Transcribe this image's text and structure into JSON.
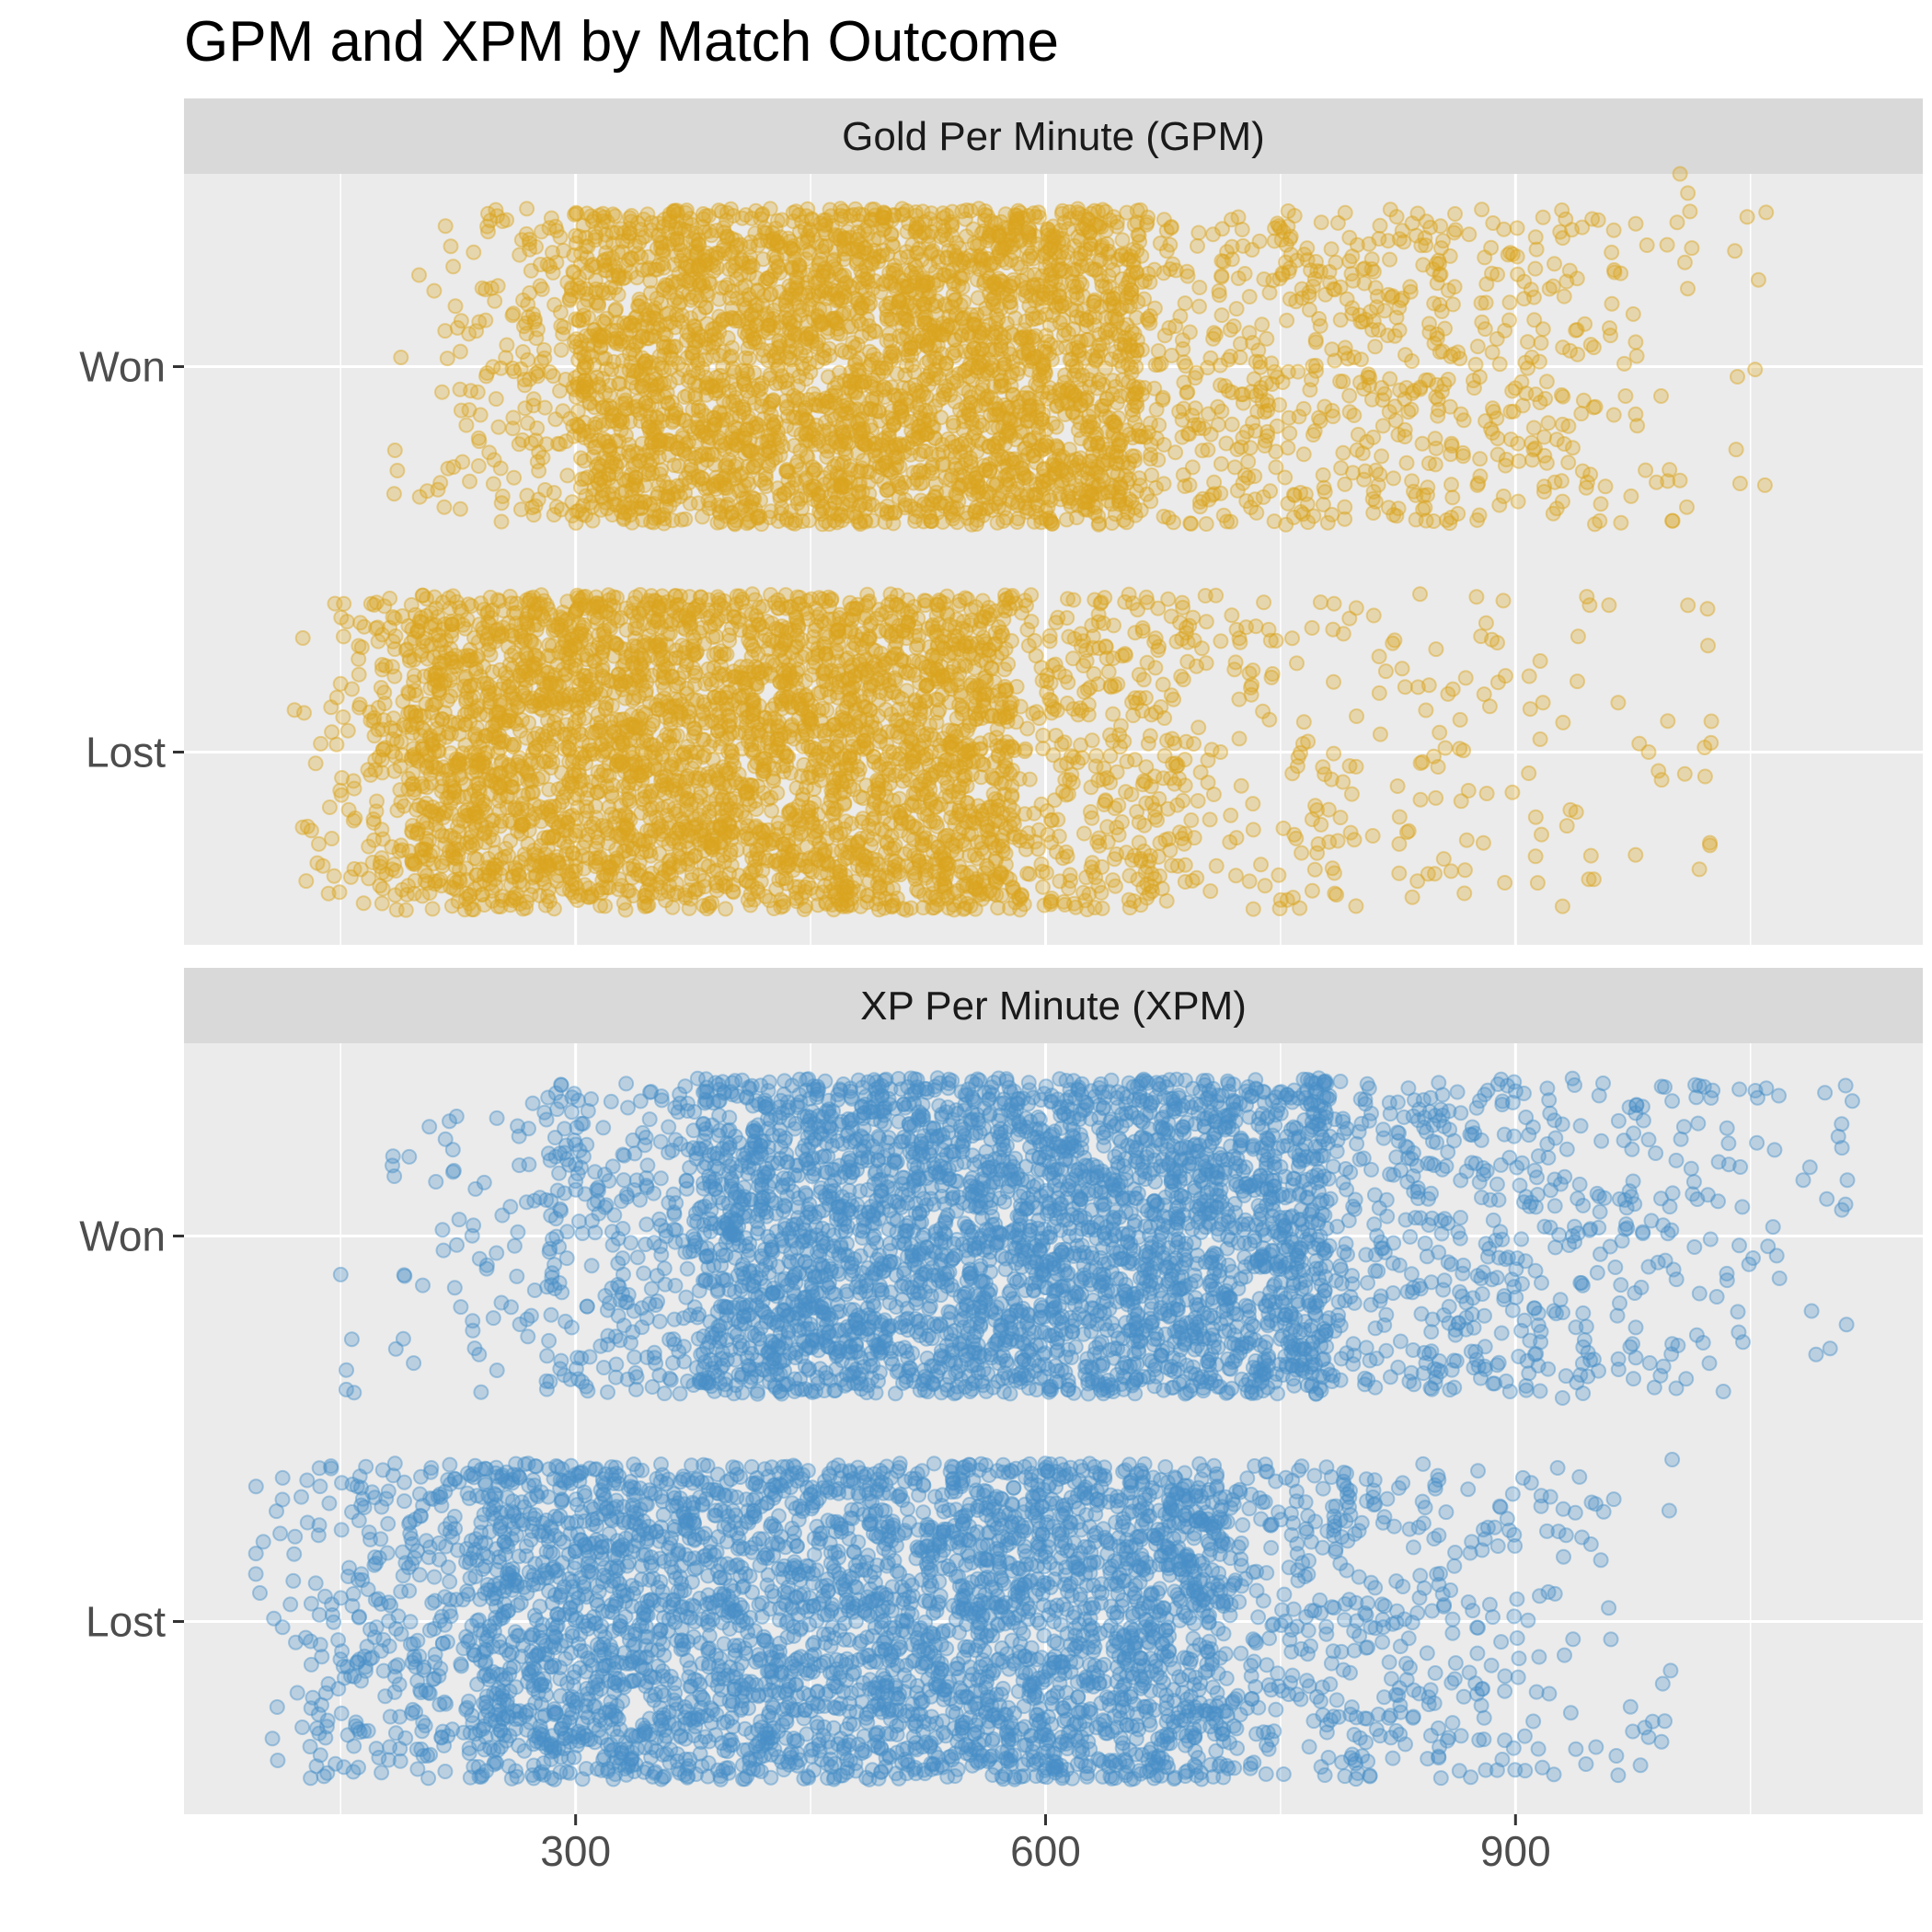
{
  "title": "GPM and XPM by Match Outcome",
  "colors": {
    "panel_background": "#EBEBEB",
    "strip_background": "#D9D9D9",
    "grid_major": "#FFFFFF",
    "gpm_points": "#DAA520",
    "xpm_points": "#4A90C8"
  },
  "chart_data": {
    "type": "scatter",
    "geometry": "jittered strip plot, facets stacked vertically, shared x axis",
    "title": "GPM and XPM by Match Outcome",
    "x_axis": {
      "range": [
        50,
        1160
      ],
      "major_ticks": [
        300,
        600,
        900
      ],
      "tick_labels": [
        "300",
        "600",
        "900"
      ],
      "minor_gridlines": [
        150,
        450,
        750,
        1050
      ],
      "label": ""
    },
    "y_axis": {
      "categories": [
        "Won",
        "Lost"
      ],
      "label": ""
    },
    "grid": true,
    "legend": "none",
    "point_alpha": 0.3,
    "facets": [
      {
        "name": "Gold Per Minute (GPM)",
        "color": "#DAA520",
        "series": [
          {
            "category": "Won",
            "n_points": 4200,
            "core_range": [
              265,
              860
            ],
            "dense_range": [
              300,
              660
            ],
            "full_range": [
              175,
              1060
            ],
            "outliers": [
              [
                1060,
                0.4
              ],
              [
                1005,
                0.5
              ],
              [
                1010,
                0.45
              ],
              [
                1040,
                0.3
              ],
              [
                960,
                0.1
              ],
              [
                990,
                -0.3
              ],
              [
                1000,
                -0.4
              ],
              [
                930,
                -0.35
              ],
              [
                910,
                0.2
              ],
              [
                950,
                0.05
              ],
              [
                930,
                -0.15
              ],
              [
                920,
                -0.25
              ]
            ]
          },
          {
            "category": "Lost",
            "n_points": 4200,
            "core_range": [
              170,
              690
            ],
            "dense_range": [
              195,
              580
            ],
            "full_range": [
              120,
              1025
            ],
            "outliers": [
              [
                1025,
                0.08
              ],
              [
                985,
                0.0
              ],
              [
                940,
                0.3
              ],
              [
                935,
                -0.15
              ],
              [
                950,
                -0.33
              ],
              [
                930,
                -0.4
              ],
              [
                870,
                -0.1
              ],
              [
                880,
                0.15
              ]
            ]
          }
        ]
      },
      {
        "name": "XP Per Minute (XPM)",
        "color": "#4A90C8",
        "series": [
          {
            "category": "Won",
            "n_points": 4200,
            "core_range": [
              280,
              905
            ],
            "dense_range": [
              380,
              780
            ],
            "full_range": [
              150,
              1115
            ],
            "outliers": [
              [
                1115,
                0.35
              ],
              [
                1035,
                0.28
              ],
              [
                1000,
                0.35
              ],
              [
                985,
                0.25
              ],
              [
                1000,
                -0.28
              ],
              [
                985,
                -0.08
              ],
              [
                150,
                -0.1
              ],
              [
                930,
                -0.42
              ],
              [
                950,
                -0.32
              ]
            ]
          },
          {
            "category": "Lost",
            "n_points": 4200,
            "core_range": [
              155,
              800
            ],
            "dense_range": [
              230,
              720
            ],
            "full_range": [
              95,
              1000
            ],
            "outliers": [
              [
                96,
                0.35
              ],
              [
                1000,
                0.42
              ],
              [
                985,
                -0.3
              ],
              [
                910,
                0.36
              ],
              [
                945,
                -0.37
              ],
              [
                880,
                -0.25
              ],
              [
                870,
                0.05
              ]
            ]
          }
        ]
      }
    ]
  }
}
